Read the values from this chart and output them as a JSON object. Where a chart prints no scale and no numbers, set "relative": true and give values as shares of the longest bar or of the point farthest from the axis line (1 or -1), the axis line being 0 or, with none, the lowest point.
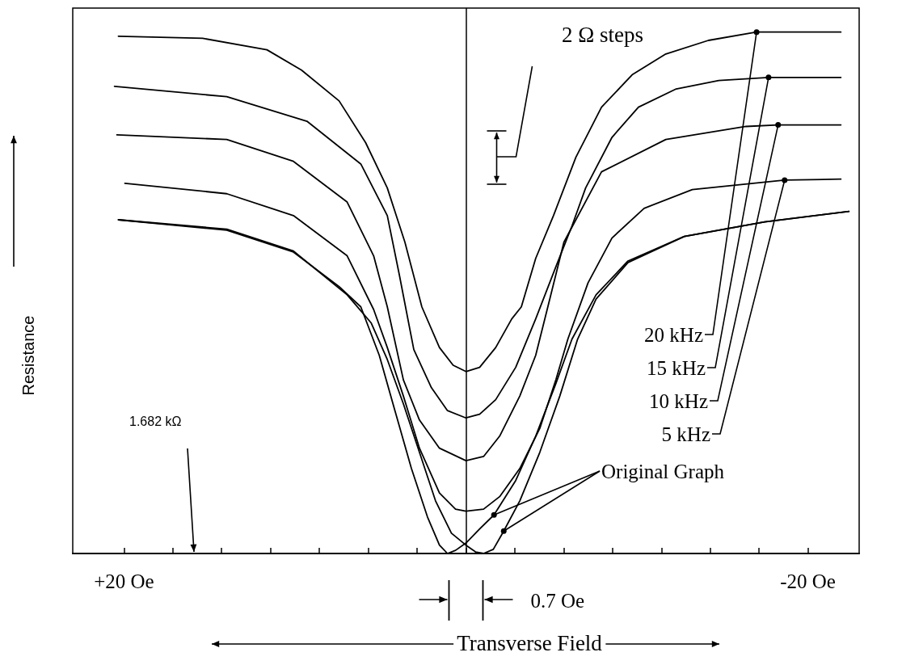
{
  "chart_data": {
    "type": "line",
    "relative": true,
    "xlabel": "Transverse Field",
    "ylabel": "Resistance",
    "xlim": [
      23,
      -23
    ],
    "xticks": [
      {
        "value": 20,
        "label": "+20 Oe"
      },
      {
        "value": 17.14,
        "label": null
      },
      {
        "value": 14.29,
        "label": null
      },
      {
        "value": 11.43,
        "label": null
      },
      {
        "value": 8.57,
        "label": null
      },
      {
        "value": 5.71,
        "label": null
      },
      {
        "value": 2.86,
        "label": null
      },
      {
        "value": 0,
        "label": null
      },
      {
        "value": -2.86,
        "label": null
      },
      {
        "value": -5.71,
        "label": null
      },
      {
        "value": -8.57,
        "label": null
      },
      {
        "value": -11.43,
        "label": null
      },
      {
        "value": -14.29,
        "label": null
      },
      {
        "value": -17.14,
        "label": null
      },
      {
        "value": -20,
        "label": "-20 Oe"
      }
    ],
    "marker": "none",
    "line_style": "solid",
    "grid": false,
    "ref_lines": [
      {
        "axis": "x",
        "value": 0
      }
    ],
    "annotations": [
      "2 Ω steps",
      "1.682 kΩ",
      "0.7 Oe"
    ],
    "series": [
      {
        "name": "20 kHz",
        "color": "#000000",
        "x": [
          20.33,
          15.4,
          11.64,
          9.62,
          7.42,
          5.87,
          4.6,
          3.57,
          2.58,
          1.55,
          0.75,
          0,
          -0.8,
          -1.74,
          -2.68,
          -3.24,
          -4.08,
          -5.12,
          -6.43,
          -7.93,
          -9.72,
          -11.69,
          -14.18,
          -17.0,
          -21.93
        ],
        "values": [
          0.992,
          0.988,
          0.966,
          0.927,
          0.868,
          0.788,
          0.701,
          0.597,
          0.473,
          0.395,
          0.361,
          0.349,
          0.357,
          0.395,
          0.45,
          0.473,
          0.566,
          0.648,
          0.76,
          0.856,
          0.918,
          0.958,
          0.984,
          1.0,
          1.0
        ]
      },
      {
        "name": "15 kHz",
        "color": "#000000",
        "x": [
          20.56,
          13.99,
          9.3,
          6.15,
          4.6,
          3.9,
          3.05,
          2.02,
          1.08,
          0,
          -0.8,
          -1.74,
          -2.91,
          -4.08,
          -5.26,
          -6.2,
          -7.0,
          -8.54,
          -10.09,
          -12.3,
          -14.79,
          -17.7,
          -21.93
        ],
        "values": [
          0.896,
          0.876,
          0.829,
          0.747,
          0.648,
          0.535,
          0.391,
          0.318,
          0.274,
          0.26,
          0.267,
          0.295,
          0.357,
          0.45,
          0.55,
          0.628,
          0.701,
          0.798,
          0.856,
          0.891,
          0.907,
          0.913,
          0.913
        ]
      },
      {
        "name": "10 kHz",
        "color": "#000000",
        "x": [
          20.42,
          13.99,
          10.09,
          6.95,
          5.4,
          4.6,
          3.66,
          2.72,
          1.55,
          0,
          -1.03,
          -1.97,
          -3.15,
          -4.08,
          -4.79,
          -5.73,
          -7.93,
          -11.69,
          -16.39,
          -18.26,
          -21.93
        ],
        "values": [
          0.803,
          0.794,
          0.752,
          0.674,
          0.571,
          0.473,
          0.333,
          0.256,
          0.202,
          0.178,
          0.186,
          0.225,
          0.302,
          0.38,
          0.473,
          0.597,
          0.732,
          0.794,
          0.819,
          0.822,
          0.822
        ]
      },
      {
        "name": "5 kHz",
        "color": "#000000",
        "x": [
          19.95,
          13.99,
          10.09,
          6.95,
          5.4,
          4.6,
          3.66,
          2.72,
          1.55,
          0.61,
          0,
          -1.03,
          -1.97,
          -3.15,
          -4.32,
          -5.26,
          -5.96,
          -7.14,
          -8.54,
          -10.42,
          -13.24,
          -18.64,
          -21.93
        ],
        "values": [
          0.71,
          0.69,
          0.648,
          0.571,
          0.468,
          0.395,
          0.302,
          0.202,
          0.116,
          0.085,
          0.081,
          0.085,
          0.109,
          0.163,
          0.24,
          0.333,
          0.411,
          0.519,
          0.605,
          0.662,
          0.698,
          0.716,
          0.718
        ]
      },
      {
        "name": "Original Graph",
        "color": "#000000",
        "x": [
          20.33,
          13.99,
          10.09,
          7.42,
          6.15,
          5.07,
          4.13,
          3.19,
          2.25,
          1.55,
          1.08,
          0.61,
          0,
          -0.8,
          -1.64,
          -2.91,
          -4.08,
          -5.26,
          -6.2,
          -7.61,
          -9.48,
          -12.77,
          -17.47,
          -22.4
        ],
        "values": [
          0.64,
          0.62,
          0.578,
          0.512,
          0.473,
          0.38,
          0.271,
          0.163,
          0.07,
          0.016,
          0,
          0.006,
          0.02,
          0.047,
          0.074,
          0.14,
          0.225,
          0.326,
          0.411,
          0.496,
          0.561,
          0.608,
          0.636,
          0.656
        ]
      },
      {
        "color": "#000000",
        "x": [
          20.33,
          13.99,
          10.09,
          6.95,
          5.54,
          4.6,
          3.66,
          2.72,
          1.78,
          0.85,
          0,
          -0.56,
          -1.03,
          -1.6,
          -2.21,
          -3.15,
          -4.32,
          -5.49,
          -6.53,
          -7.61,
          -9.48,
          -12.77,
          -17.47,
          -22.4
        ],
        "values": [
          0.64,
          0.622,
          0.58,
          0.496,
          0.442,
          0.372,
          0.287,
          0.194,
          0.101,
          0.039,
          0.016,
          0.003,
          0,
          0.008,
          0.043,
          0.101,
          0.194,
          0.302,
          0.411,
          0.488,
          0.558,
          0.608,
          0.636,
          0.656
        ]
      }
    ]
  }
}
